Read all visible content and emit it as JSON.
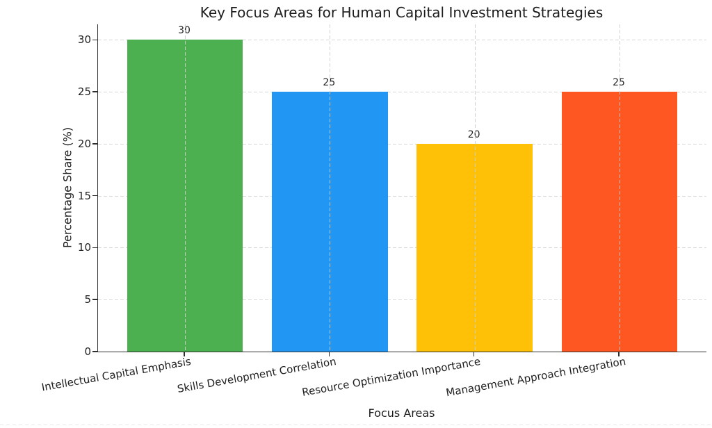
{
  "chart_data": {
    "type": "bar",
    "title": "Key Focus Areas for Human Capital Investment Strategies",
    "xlabel": "Focus Areas",
    "ylabel": "Percentage Share (%)",
    "categories": [
      "Intellectual Capital Emphasis",
      "Skills Development Correlation",
      "Resource Optimization Importance",
      "Management Approach Integration"
    ],
    "values": [
      30,
      25,
      20,
      25
    ],
    "value_labels": [
      "30",
      "25",
      "20",
      "25"
    ],
    "bar_colors": [
      "#4caf50",
      "#2196f3",
      "#ffc107",
      "#ff5722"
    ],
    "yticks": [
      0,
      5,
      10,
      15,
      20,
      25,
      30
    ],
    "ylim": [
      0,
      31.5
    ],
    "grid": "dashed",
    "grid_color": "#d8d8d8",
    "spine_color": "#2e2e2e",
    "text_color": "#1f1f1f",
    "background_color": "#ffffff",
    "legend": "none"
  }
}
